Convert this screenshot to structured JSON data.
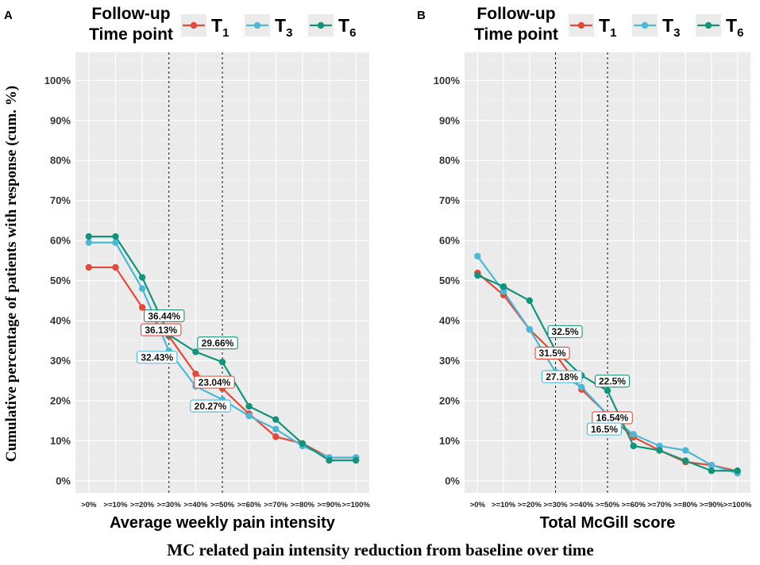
{
  "y_axis_label": "Cumulative percentage of patients with response (cum. %)",
  "footer_label": "MC related pain intensity reduction from baseline over time",
  "legend": {
    "title_line1": "Follow-up",
    "title_line2": "Time point",
    "entries": [
      {
        "label": "T",
        "sub": "1",
        "color": "#e04a3a"
      },
      {
        "label": "T",
        "sub": "3",
        "color": "#4db8d6"
      },
      {
        "label": "T",
        "sub": "6",
        "color": "#12937a"
      }
    ]
  },
  "chart_data": [
    {
      "type": "line",
      "panel": "A",
      "title": "",
      "xlabel": "Average weekly pain intensity",
      "ylabel": "Cumulative percentage of patients with response (cum. %)",
      "categories": [
        ">0%",
        ">=10%",
        ">=20%",
        ">=30%",
        ">=40%",
        ">=50%",
        ">=60%",
        ">=70%",
        ">=80%",
        ">=90%",
        ">=100%"
      ],
      "ylim": [
        -3,
        107
      ],
      "yticks": [
        "0%",
        "10%",
        "20%",
        "30%",
        "40%",
        "50%",
        "60%",
        "70%",
        "80%",
        "90%",
        "100%"
      ],
      "vlines_at_categories": [
        ">=30%",
        ">=50%"
      ],
      "series": [
        {
          "name": "T1",
          "color": "#e04a3a",
          "values": [
            53.3,
            53.3,
            43.3,
            36.13,
            26.7,
            23.04,
            16.7,
            11.0,
            9.3,
            5.8,
            5.8
          ]
        },
        {
          "name": "T3",
          "color": "#4db8d6",
          "values": [
            59.5,
            59.5,
            48.0,
            32.43,
            23.6,
            20.27,
            16.2,
            12.9,
            8.7,
            5.8,
            5.8
          ]
        },
        {
          "name": "T6",
          "color": "#12937a",
          "values": [
            61.0,
            61.0,
            50.8,
            36.44,
            32.2,
            29.66,
            18.6,
            15.3,
            9.3,
            5.1,
            5.1
          ]
        }
      ],
      "annotations": [
        {
          "text": "36.44%",
          "series": "T6",
          "category": ">=30%"
        },
        {
          "text": "36.13%",
          "series": "T1",
          "category": ">=30%"
        },
        {
          "text": "32.43%",
          "series": "T3",
          "category": ">=30%"
        },
        {
          "text": "29.66%",
          "series": "T6",
          "category": ">=50%"
        },
        {
          "text": "23.04%",
          "series": "T1",
          "category": ">=50%"
        },
        {
          "text": "20.27%",
          "series": "T3",
          "category": ">=50%"
        }
      ]
    },
    {
      "type": "line",
      "panel": "B",
      "title": "",
      "xlabel": "Total McGill score",
      "ylabel": "",
      "categories": [
        ">0%",
        ">=10%",
        ">=20%",
        ">=30%",
        ">=40%",
        ">=50%",
        ">=60%",
        ">=70%",
        ">=80%",
        ">=90%",
        ">=100%"
      ],
      "ylim": [
        -3,
        107
      ],
      "yticks": [
        "0%",
        "10%",
        "20%",
        "30%",
        "40%",
        "50%",
        "60%",
        "70%",
        "80%",
        "90%",
        "100%"
      ],
      "vlines_at_categories": [
        ">=30%",
        ">=50%"
      ],
      "series": [
        {
          "name": "T1",
          "color": "#e04a3a",
          "values": [
            51.9,
            46.4,
            37.8,
            31.5,
            22.8,
            16.54,
            10.9,
            7.6,
            4.7,
            3.9,
            2.4
          ]
        },
        {
          "name": "T3",
          "color": "#4db8d6",
          "values": [
            56.1,
            47.3,
            37.8,
            27.18,
            23.4,
            16.5,
            11.6,
            8.7,
            7.6,
            3.9,
            1.9
          ]
        },
        {
          "name": "T6",
          "color": "#12937a",
          "values": [
            51.3,
            48.5,
            45.0,
            32.5,
            26.3,
            22.5,
            8.7,
            7.6,
            5.0,
            2.5,
            2.5
          ]
        }
      ],
      "annotations": [
        {
          "text": "32.5%",
          "series": "T6",
          "category": ">=30%"
        },
        {
          "text": "31.5%",
          "series": "T1",
          "category": ">=30%"
        },
        {
          "text": "27.18%",
          "series": "T3",
          "category": ">=30%"
        },
        {
          "text": "22.5%",
          "series": "T6",
          "category": ">=50%"
        },
        {
          "text": "16.54%",
          "series": "T1",
          "category": ">=50%"
        },
        {
          "text": "16.5%",
          "series": "T3",
          "category": ">=50%"
        }
      ]
    }
  ]
}
